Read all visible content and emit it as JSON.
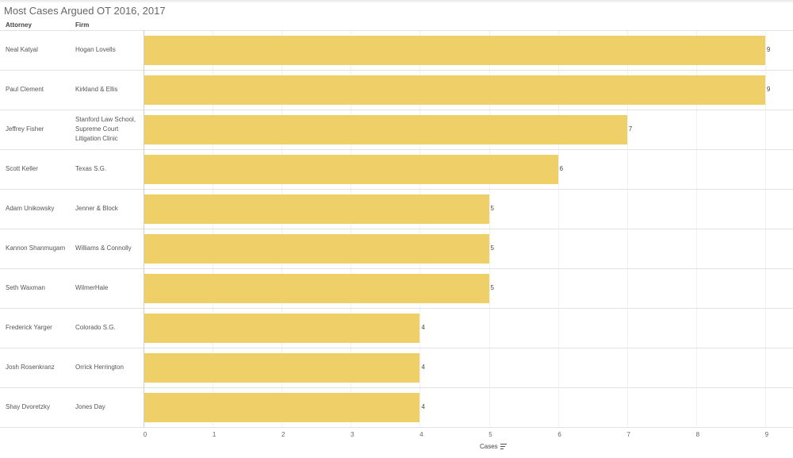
{
  "title": "Most Cases Argued OT 2016, 2017",
  "columns": {
    "attorney": "Attorney",
    "firm": "Firm"
  },
  "colors": {
    "bar": "#efcf68"
  },
  "chart_data": {
    "type": "bar",
    "orientation": "horizontal",
    "xlabel": "Cases",
    "xlim": [
      0,
      9
    ],
    "xticks": [
      "0",
      "1",
      "2",
      "3",
      "4",
      "5",
      "6",
      "7",
      "8",
      "9"
    ],
    "grid": true,
    "rows": [
      {
        "attorney": "Neal Katyal",
        "firm": "Hogan Lovells",
        "value": 9
      },
      {
        "attorney": "Paul Clement",
        "firm": "Kirkland & Ellis",
        "value": 9
      },
      {
        "attorney": "Jeffrey Fisher",
        "firm": "Stanford Law School,\nSupreme Court\nLitigation Clinic",
        "value": 7
      },
      {
        "attorney": "Scott Keller",
        "firm": "Texas S.G.",
        "value": 6
      },
      {
        "attorney": "Adam Unikowsky",
        "firm": "Jenner & Block",
        "value": 5
      },
      {
        "attorney": "Kannon Shanmugam",
        "firm": "Williams & Connolly",
        "value": 5
      },
      {
        "attorney": "Seth Waxman",
        "firm": "WilmerHale",
        "value": 5
      },
      {
        "attorney": "Frederick Yarger",
        "firm": "Colorado S.G.",
        "value": 4
      },
      {
        "attorney": "Josh Rosenkranz",
        "firm": "Orrick Herrington",
        "value": 4
      },
      {
        "attorney": "Shay Dvoretzky",
        "firm": "Jones Day",
        "value": 4
      }
    ]
  }
}
